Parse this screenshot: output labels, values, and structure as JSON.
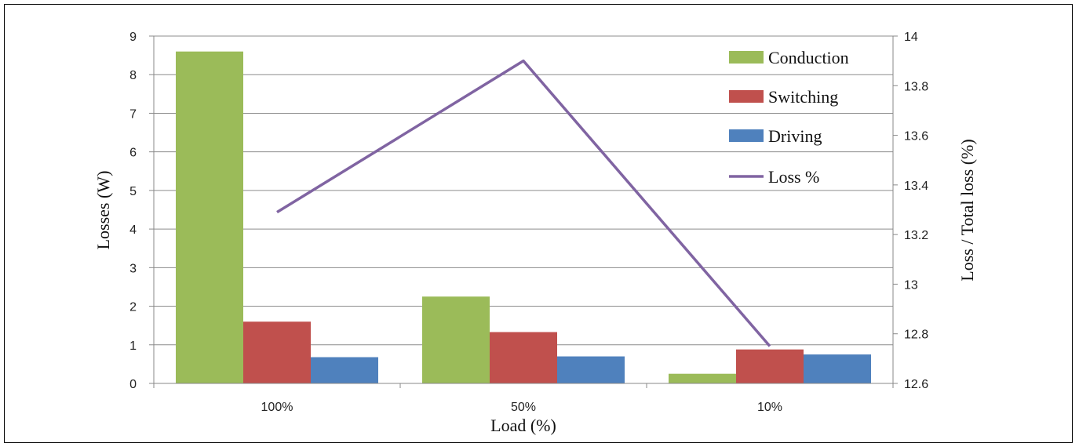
{
  "chart_data": {
    "type": "bar",
    "categories": [
      "100%",
      "50%",
      "10%"
    ],
    "series": [
      {
        "name": "Conduction",
        "kind": "bar",
        "axis": "left",
        "color": "#9bbb59",
        "values": [
          8.6,
          2.25,
          0.25
        ]
      },
      {
        "name": "Switching",
        "kind": "bar",
        "axis": "left",
        "color": "#c0504d",
        "values": [
          1.6,
          1.33,
          0.88
        ]
      },
      {
        "name": "Driving",
        "kind": "bar",
        "axis": "left",
        "color": "#4f81bd",
        "values": [
          0.68,
          0.7,
          0.75
        ]
      },
      {
        "name": "Loss %",
        "kind": "line",
        "axis": "right",
        "color": "#8064a2",
        "values": [
          13.29,
          13.9,
          12.75
        ]
      }
    ],
    "xlabel": "Load (%)",
    "ylabel": "Losses (W)",
    "y2label": "Loss / Total loss (%)",
    "ylim": [
      0,
      9
    ],
    "y2lim": [
      12.6,
      14
    ],
    "yticks": [
      "0",
      "1",
      "2",
      "3",
      "4",
      "5",
      "6",
      "7",
      "8",
      "9"
    ],
    "y2ticks": [
      "12.6",
      "12.8",
      "13",
      "13.2",
      "13.4",
      "13.6",
      "13.8",
      "14"
    ],
    "grid": true,
    "legend": "top-right"
  }
}
